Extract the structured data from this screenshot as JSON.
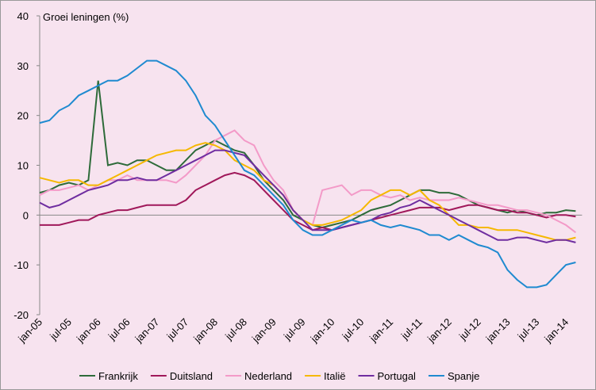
{
  "chart_data": {
    "type": "line",
    "ylabel": "Groei leningen (%)",
    "categories": [
      "jan-05",
      null,
      null,
      "jul-05",
      null,
      null,
      "jan-06",
      null,
      null,
      "jul-06",
      null,
      null,
      "jan-07",
      null,
      null,
      "jul-07",
      null,
      null,
      "jan-08",
      null,
      null,
      "jul-08",
      null,
      null,
      "jan-09",
      null,
      null,
      "jul-09",
      null,
      null,
      "jan-10",
      null,
      null,
      "jul-10",
      null,
      null,
      "jan-11",
      null,
      null,
      "jul-11",
      null,
      null,
      "jan-12",
      null,
      null,
      "jul-12",
      null,
      null,
      "jan-13",
      null,
      null,
      "jul-13",
      null,
      null,
      "jan-14",
      null
    ],
    "ylim": [
      -20,
      40
    ],
    "yticks": [
      -20,
      -10,
      0,
      10,
      20,
      30,
      40
    ],
    "grid": false,
    "legend": "bottom",
    "series": [
      {
        "name": "Frankrijk",
        "color": "#2e6b3a",
        "values": [
          4.5,
          5,
          6,
          6.5,
          6,
          7,
          27,
          10,
          10.5,
          10,
          11,
          11,
          10,
          9,
          9,
          11,
          13,
          14,
          15,
          14,
          13,
          12.5,
          10,
          7,
          5,
          3,
          0,
          -1,
          -2,
          -2.5,
          -2,
          -1.5,
          -1,
          0,
          1,
          1.5,
          2,
          3,
          4,
          5,
          5,
          4.5,
          4.5,
          4,
          3,
          2,
          1.5,
          1,
          0.5,
          1,
          0.5,
          0,
          0.5,
          0.5,
          1,
          0.8
        ]
      },
      {
        "name": "Duitsland",
        "color": "#a0185a",
        "values": [
          -2,
          -2,
          -2,
          -1.5,
          -1,
          -1,
          0,
          0.5,
          1,
          1,
          1.5,
          2,
          2,
          2,
          2,
          3,
          5,
          6,
          7,
          8,
          8.5,
          8,
          7,
          5,
          3,
          1,
          -1,
          -2,
          -3,
          -2.5,
          -3,
          -2.5,
          -2,
          -1.5,
          -1,
          -0.5,
          0,
          0.5,
          1,
          1.5,
          1.5,
          1.5,
          1,
          1.5,
          2,
          2,
          1.5,
          1,
          1,
          0.5,
          0.5,
          0,
          -0.5,
          0,
          0,
          -0.3
        ]
      },
      {
        "name": "Nederland",
        "color": "#f39ac8",
        "values": [
          4,
          5,
          5,
          5.5,
          6,
          5,
          6,
          7,
          7,
          8,
          7,
          7,
          7,
          7,
          6.5,
          8,
          10,
          12,
          15,
          16,
          17,
          15,
          14,
          10,
          7,
          5,
          1,
          -1,
          -2,
          5,
          5.5,
          6,
          4,
          5,
          5,
          4,
          3.5,
          4,
          3,
          3.5,
          3,
          3,
          3,
          3.5,
          3,
          2.5,
          2,
          2,
          1.5,
          1,
          1,
          0.5,
          0,
          -1,
          -2,
          -3.5
        ]
      },
      {
        "name": "Italië",
        "color": "#f5b800",
        "values": [
          7.5,
          7,
          6.5,
          7,
          7,
          6,
          6,
          7,
          8,
          9,
          10,
          11,
          12,
          12.5,
          13,
          13,
          14,
          14.5,
          14,
          13,
          11,
          10,
          9,
          7,
          6,
          4,
          1,
          -1,
          -2,
          -2,
          -1.5,
          -1,
          0,
          1,
          3,
          4,
          5,
          5,
          4,
          5,
          3,
          2,
          0,
          -2,
          -2,
          -2.5,
          -2.5,
          -3,
          -3,
          -3,
          -3.5,
          -4,
          -4.5,
          -5,
          -5,
          -4.5
        ]
      },
      {
        "name": "Portugal",
        "color": "#6f2da0",
        "values": [
          2.5,
          1.5,
          2,
          3,
          4,
          5,
          5.5,
          6,
          7,
          7,
          7.5,
          7,
          7,
          8,
          9,
          10,
          11,
          12,
          13,
          13,
          12.5,
          12,
          10,
          8,
          6,
          4,
          1,
          -1,
          -3,
          -3,
          -3,
          -2.5,
          -2,
          -1.5,
          -1,
          0,
          0.5,
          1.5,
          2,
          3,
          2,
          1,
          0,
          -1,
          -2,
          -3,
          -4,
          -5,
          -5,
          -4.5,
          -4.5,
          -5,
          -5.5,
          -5,
          -5,
          -5.5
        ]
      },
      {
        "name": "Spanje",
        "color": "#1f8ad0",
        "values": [
          18.5,
          19,
          21,
          22,
          24,
          25,
          26,
          27,
          27,
          28,
          29.5,
          31,
          31,
          30,
          29,
          27,
          24,
          20,
          18,
          15,
          12,
          9,
          8,
          6,
          4,
          2,
          -1,
          -3,
          -4,
          -4,
          -3,
          -2,
          -1,
          -1.5,
          -1,
          -2,
          -2.5,
          -2,
          -2.5,
          -3,
          -4,
          -4,
          -5,
          -4,
          -5,
          -6,
          -6.5,
          -7.5,
          -11,
          -13,
          -14.5,
          -14.5,
          -14,
          -12,
          -10,
          -9.5
        ]
      }
    ]
  }
}
